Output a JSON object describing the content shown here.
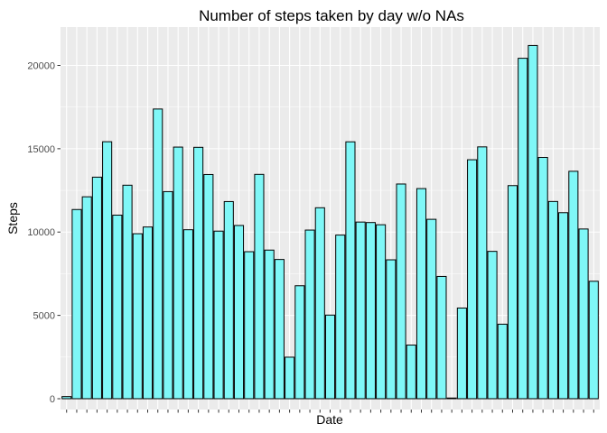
{
  "chart_data": {
    "type": "bar",
    "title": "Number of steps taken by day w/o NAs",
    "xlabel": "Date",
    "ylabel": "Steps",
    "ylim": [
      -650,
      22300
    ],
    "yticks": [
      0,
      5000,
      10000,
      15000,
      20000
    ],
    "xtick_labels_visible": false,
    "grid": true,
    "bar_fill": "#7ff7f7",
    "bar_stroke": "#000000",
    "panel_background": "#ebebeb",
    "grid_color": "#ffffff",
    "values": [
      126,
      11352,
      12116,
      13294,
      15420,
      11015,
      12811,
      9900,
      10304,
      17382,
      12426,
      15098,
      10139,
      15084,
      13452,
      10056,
      11829,
      10395,
      8821,
      13460,
      8918,
      8355,
      2492,
      6778,
      10119,
      11458,
      5018,
      9819,
      15414,
      10600,
      10571,
      10439,
      8334,
      12883,
      3219,
      12608,
      10765,
      7336,
      41,
      5441,
      14339,
      15110,
      8841,
      4472,
      12787,
      20427,
      21194,
      14478,
      11834,
      11162,
      13646,
      10183,
      7047
    ]
  }
}
